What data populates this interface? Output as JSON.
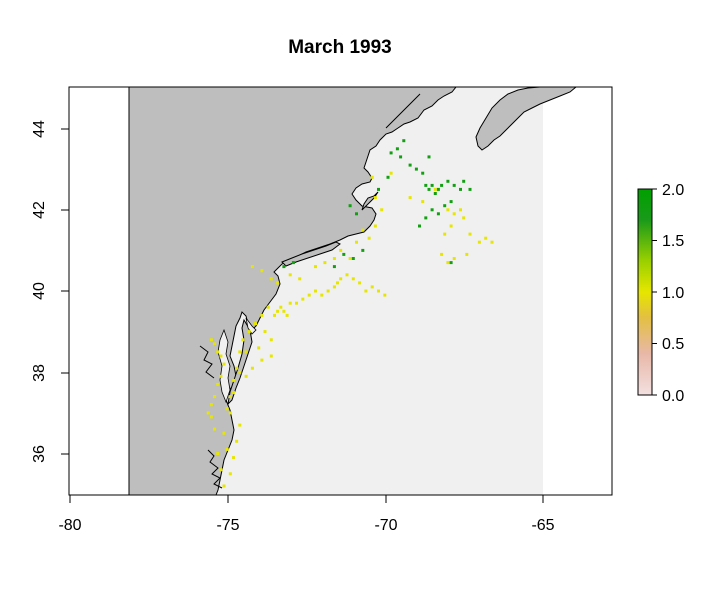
{
  "title": "March 1993",
  "map": {
    "x_ticks": [
      "-80",
      "-75",
      "-70",
      "-65"
    ],
    "y_ticks": [
      "36",
      "38",
      "40",
      "42",
      "44"
    ],
    "xlim": [
      -81,
      -63
    ],
    "ylim": [
      35,
      45
    ],
    "colors": {
      "land": "#bebebe",
      "ocean": "#f0f0f0",
      "no_data": "#ffffff",
      "coastline": "#000000"
    }
  },
  "legend": {
    "ticks": [
      "2.0",
      "1.5",
      "1.0",
      "0.5",
      "0.0"
    ],
    "range": [
      0,
      2
    ],
    "colors": [
      "#f3e0e0",
      "#e8b8a8",
      "#e3c040",
      "#e6e600",
      "#9ad000",
      "#1a9a1a",
      "#00a000"
    ]
  },
  "cells": {
    "one": [
      [
        -75.5,
        38.8
      ],
      [
        -75.4,
        38.7
      ],
      [
        -75.3,
        38.5
      ],
      [
        -75.2,
        38.4
      ],
      [
        -75.1,
        38.2
      ],
      [
        -75.2,
        37.9
      ],
      [
        -75.3,
        37.7
      ],
      [
        -75.4,
        37.4
      ],
      [
        -75.5,
        37.2
      ],
      [
        -75.6,
        37.0
      ],
      [
        -75.5,
        36.9
      ],
      [
        -75.4,
        36.6
      ],
      [
        -75.3,
        36.0
      ],
      [
        -75.2,
        35.6
      ],
      [
        -75.1,
        35.2
      ],
      [
        -75.0,
        37.1
      ],
      [
        -74.9,
        37.4
      ],
      [
        -74.8,
        37.8
      ],
      [
        -74.7,
        38.1
      ],
      [
        -74.6,
        38.5
      ],
      [
        -74.5,
        38.8
      ],
      [
        -74.3,
        39.0
      ],
      [
        -74.1,
        39.2
      ],
      [
        -73.9,
        39.4
      ],
      [
        -73.7,
        39.6
      ],
      [
        -73.5,
        39.4
      ],
      [
        -73.4,
        39.5
      ],
      [
        -73.3,
        39.6
      ],
      [
        -73.2,
        39.5
      ],
      [
        -73.1,
        39.4
      ],
      [
        -73.0,
        39.7
      ],
      [
        -72.8,
        39.7
      ],
      [
        -72.6,
        39.8
      ],
      [
        -72.4,
        39.9
      ],
      [
        -72.2,
        40.0
      ],
      [
        -72.0,
        39.9
      ],
      [
        -71.8,
        40.0
      ],
      [
        -71.6,
        40.1
      ],
      [
        -71.5,
        40.2
      ],
      [
        -71.4,
        40.3
      ],
      [
        -71.2,
        40.4
      ],
      [
        -71.0,
        40.3
      ],
      [
        -70.8,
        40.2
      ],
      [
        -70.6,
        40.0
      ],
      [
        -70.4,
        40.1
      ],
      [
        -70.2,
        40.0
      ],
      [
        -70.0,
        39.9
      ],
      [
        -73.8,
        39.0
      ],
      [
        -73.6,
        38.8
      ],
      [
        -74.0,
        38.6
      ],
      [
        -74.4,
        38.5
      ],
      [
        -74.6,
        38.0
      ],
      [
        -74.8,
        37.5
      ],
      [
        -74.9,
        37.0
      ],
      [
        -74.6,
        36.7
      ],
      [
        -74.7,
        36.3
      ],
      [
        -73.0,
        40.4
      ],
      [
        -72.7,
        40.3
      ],
      [
        -72.2,
        40.6
      ],
      [
        -71.9,
        40.7
      ],
      [
        -71.6,
        40.8
      ],
      [
        -71.4,
        41.0
      ],
      [
        -71.1,
        40.8
      ],
      [
        -70.9,
        41.2
      ],
      [
        -70.7,
        41.5
      ],
      [
        -70.5,
        41.3
      ],
      [
        -70.3,
        41.6
      ],
      [
        -70.1,
        42.0
      ],
      [
        -70.3,
        42.3
      ],
      [
        -70.4,
        42.8
      ],
      [
        -69.8,
        42.9
      ],
      [
        -69.2,
        42.3
      ],
      [
        -68.8,
        42.2
      ],
      [
        -68.4,
        42.5
      ],
      [
        -68.0,
        42.0
      ],
      [
        -67.8,
        41.9
      ],
      [
        -67.6,
        42.0
      ],
      [
        -67.5,
        41.8
      ],
      [
        -67.9,
        41.6
      ],
      [
        -68.1,
        41.4
      ],
      [
        -67.3,
        41.4
      ],
      [
        -67.0,
        41.2
      ],
      [
        -66.8,
        41.3
      ],
      [
        -66.6,
        41.2
      ],
      [
        -68.2,
        40.9
      ],
      [
        -67.8,
        40.8
      ],
      [
        -67.4,
        40.9
      ],
      [
        -68.0,
        40.7
      ],
      [
        -74.2,
        40.6
      ],
      [
        -73.9,
        40.5
      ],
      [
        -73.6,
        40.3
      ],
      [
        -73.4,
        40.2
      ],
      [
        -74.4,
        37.9
      ],
      [
        -74.2,
        38.1
      ],
      [
        -73.9,
        38.3
      ],
      [
        -73.6,
        38.4
      ],
      [
        -75.0,
        36.1
      ],
      [
        -74.8,
        35.9
      ],
      [
        -74.9,
        35.5
      ],
      [
        -75.1,
        36.5
      ]
    ],
    "two": [
      [
        -69.8,
        43.4
      ],
      [
        -69.6,
        43.5
      ],
      [
        -69.5,
        43.3
      ],
      [
        -69.2,
        43.1
      ],
      [
        -69.0,
        43.0
      ],
      [
        -68.8,
        42.9
      ],
      [
        -68.7,
        42.6
      ],
      [
        -68.6,
        42.5
      ],
      [
        -68.5,
        42.6
      ],
      [
        -68.4,
        42.4
      ],
      [
        -68.3,
        42.5
      ],
      [
        -68.2,
        42.6
      ],
      [
        -68.0,
        42.7
      ],
      [
        -67.8,
        42.6
      ],
      [
        -67.6,
        42.5
      ],
      [
        -67.5,
        42.7
      ],
      [
        -67.3,
        42.5
      ],
      [
        -67.9,
        42.2
      ],
      [
        -68.1,
        42.1
      ],
      [
        -68.3,
        41.9
      ],
      [
        -68.5,
        42.0
      ],
      [
        -68.7,
        41.8
      ],
      [
        -68.9,
        41.6
      ],
      [
        -69.9,
        42.8
      ],
      [
        -70.2,
        42.5
      ],
      [
        -70.7,
        41.0
      ],
      [
        -71.0,
        40.8
      ],
      [
        -71.3,
        40.9
      ],
      [
        -71.6,
        40.6
      ],
      [
        -72.9,
        40.7
      ],
      [
        -73.2,
        40.6
      ],
      [
        -69.4,
        43.7
      ],
      [
        -68.6,
        43.3
      ],
      [
        -70.9,
        41.9
      ],
      [
        -71.1,
        42.1
      ],
      [
        -67.9,
        40.7
      ]
    ]
  }
}
